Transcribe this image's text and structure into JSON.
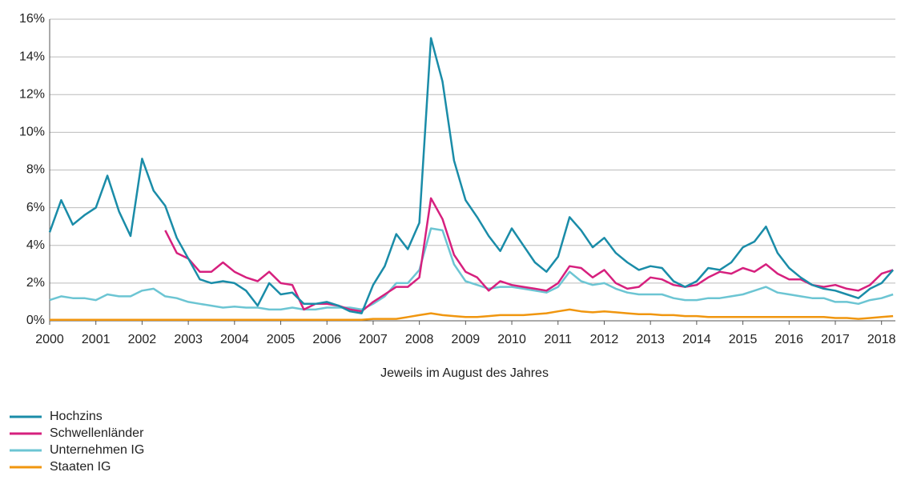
{
  "chart_data": {
    "type": "line",
    "x_label": "Jeweils im August des Jahres",
    "x": [
      2000,
      2000.25,
      2000.5,
      2000.75,
      2001,
      2001.25,
      2001.5,
      2001.75,
      2002,
      2002.25,
      2002.5,
      2002.75,
      2003,
      2003.25,
      2003.5,
      2003.75,
      2004,
      2004.25,
      2004.5,
      2004.75,
      2005,
      2005.25,
      2005.5,
      2005.75,
      2006,
      2006.25,
      2006.5,
      2006.75,
      2007,
      2007.25,
      2007.5,
      2007.75,
      2008,
      2008.25,
      2008.5,
      2008.75,
      2009,
      2009.25,
      2009.5,
      2009.75,
      2010,
      2010.25,
      2010.5,
      2010.75,
      2011,
      2011.25,
      2011.5,
      2011.75,
      2012,
      2012.25,
      2012.5,
      2012.75,
      2013,
      2013.25,
      2013.5,
      2013.75,
      2014,
      2014.25,
      2014.5,
      2014.75,
      2015,
      2015.25,
      2015.5,
      2015.75,
      2016,
      2016.25,
      2016.5,
      2016.75,
      2017,
      2017.25,
      2017.5,
      2017.75,
      2018,
      2018.25
    ],
    "series": [
      {
        "name": "Hochzins",
        "color": "#1a8ca8",
        "values": [
          4.7,
          6.4,
          5.1,
          5.6,
          6.0,
          7.7,
          5.8,
          4.5,
          8.6,
          6.9,
          6.1,
          4.4,
          3.3,
          2.2,
          2.0,
          2.1,
          2.0,
          1.6,
          0.8,
          2.0,
          1.4,
          1.5,
          0.9,
          0.9,
          1.0,
          0.8,
          0.5,
          0.4,
          1.9,
          2.9,
          4.6,
          3.8,
          5.2,
          15.0,
          12.7,
          8.5,
          6.4,
          5.5,
          4.5,
          3.7,
          4.9,
          4.0,
          3.1,
          2.6,
          3.4,
          5.5,
          4.8,
          3.9,
          4.4,
          3.6,
          3.1,
          2.7,
          2.9,
          2.8,
          2.1,
          1.8,
          2.1,
          2.8,
          2.7,
          3.1,
          3.9,
          4.2,
          5.0,
          3.6,
          2.8,
          2.3,
          1.9,
          1.7,
          1.6,
          1.4,
          1.2,
          1.7,
          2.0,
          2.7
        ]
      },
      {
        "name": "Schwellenländer",
        "color": "#d6207e",
        "values": [
          null,
          null,
          null,
          null,
          null,
          null,
          null,
          null,
          null,
          null,
          4.8,
          3.6,
          3.3,
          2.6,
          2.6,
          3.1,
          2.6,
          2.3,
          2.1,
          2.6,
          2.0,
          1.9,
          0.6,
          0.9,
          0.9,
          0.8,
          0.6,
          0.5,
          1.0,
          1.4,
          1.8,
          1.8,
          2.3,
          6.5,
          5.4,
          3.5,
          2.6,
          2.3,
          1.6,
          2.1,
          1.9,
          1.8,
          1.7,
          1.6,
          2.0,
          2.9,
          2.8,
          2.3,
          2.7,
          2.0,
          1.7,
          1.8,
          2.3,
          2.2,
          1.9,
          1.8,
          1.9,
          2.3,
          2.6,
          2.5,
          2.8,
          2.6,
          3.0,
          2.5,
          2.2,
          2.2,
          1.9,
          1.8,
          1.9,
          1.7,
          1.6,
          1.9,
          2.5,
          2.7
        ]
      },
      {
        "name": "Unternehmen IG",
        "color": "#6cc5d3",
        "values": [
          1.1,
          1.3,
          1.2,
          1.2,
          1.1,
          1.4,
          1.3,
          1.3,
          1.6,
          1.7,
          1.3,
          1.2,
          1.0,
          0.9,
          0.8,
          0.7,
          0.75,
          0.7,
          0.7,
          0.6,
          0.6,
          0.7,
          0.6,
          0.6,
          0.7,
          0.7,
          0.7,
          0.6,
          0.9,
          1.3,
          2.0,
          2.0,
          2.7,
          4.9,
          4.8,
          3.0,
          2.1,
          1.9,
          1.7,
          1.8,
          1.8,
          1.7,
          1.6,
          1.5,
          1.8,
          2.6,
          2.1,
          1.9,
          2.0,
          1.7,
          1.5,
          1.4,
          1.4,
          1.4,
          1.2,
          1.1,
          1.1,
          1.2,
          1.2,
          1.3,
          1.4,
          1.6,
          1.8,
          1.5,
          1.4,
          1.3,
          1.2,
          1.2,
          1.0,
          1.0,
          0.9,
          1.1,
          1.2,
          1.4
        ]
      },
      {
        "name": "Staaten IG",
        "color": "#f0960f",
        "values": [
          0.05,
          0.05,
          0.05,
          0.05,
          0.05,
          0.05,
          0.05,
          0.05,
          0.05,
          0.05,
          0.05,
          0.05,
          0.05,
          0.05,
          0.05,
          0.05,
          0.05,
          0.05,
          0.05,
          0.05,
          0.05,
          0.05,
          0.05,
          0.05,
          0.05,
          0.05,
          0.05,
          0.05,
          0.1,
          0.1,
          0.1,
          0.2,
          0.3,
          0.4,
          0.3,
          0.25,
          0.2,
          0.2,
          0.25,
          0.3,
          0.3,
          0.3,
          0.35,
          0.4,
          0.5,
          0.6,
          0.5,
          0.45,
          0.5,
          0.45,
          0.4,
          0.35,
          0.35,
          0.3,
          0.3,
          0.25,
          0.25,
          0.2,
          0.2,
          0.2,
          0.2,
          0.2,
          0.2,
          0.2,
          0.2,
          0.2,
          0.2,
          0.2,
          0.15,
          0.15,
          0.1,
          0.15,
          0.2,
          0.25
        ]
      }
    ],
    "xlim": [
      2000,
      2018.3
    ],
    "xticks": [
      2000,
      2001,
      2002,
      2003,
      2004,
      2005,
      2006,
      2007,
      2008,
      2009,
      2010,
      2011,
      2012,
      2013,
      2014,
      2015,
      2016,
      2017,
      2018
    ],
    "ylim": [
      0,
      16
    ],
    "yticks": [
      {
        "value": 0,
        "label": "0%"
      },
      {
        "value": 2,
        "label": "2%"
      },
      {
        "value": 4,
        "label": "4%"
      },
      {
        "value": 6,
        "label": "6%"
      },
      {
        "value": 8,
        "label": "8%"
      },
      {
        "value": 10,
        "label": "10%"
      },
      {
        "value": 12,
        "label": "12%"
      },
      {
        "value": 14,
        "label": "14%"
      },
      {
        "value": 16,
        "label": "16%"
      }
    ],
    "grid": true
  }
}
